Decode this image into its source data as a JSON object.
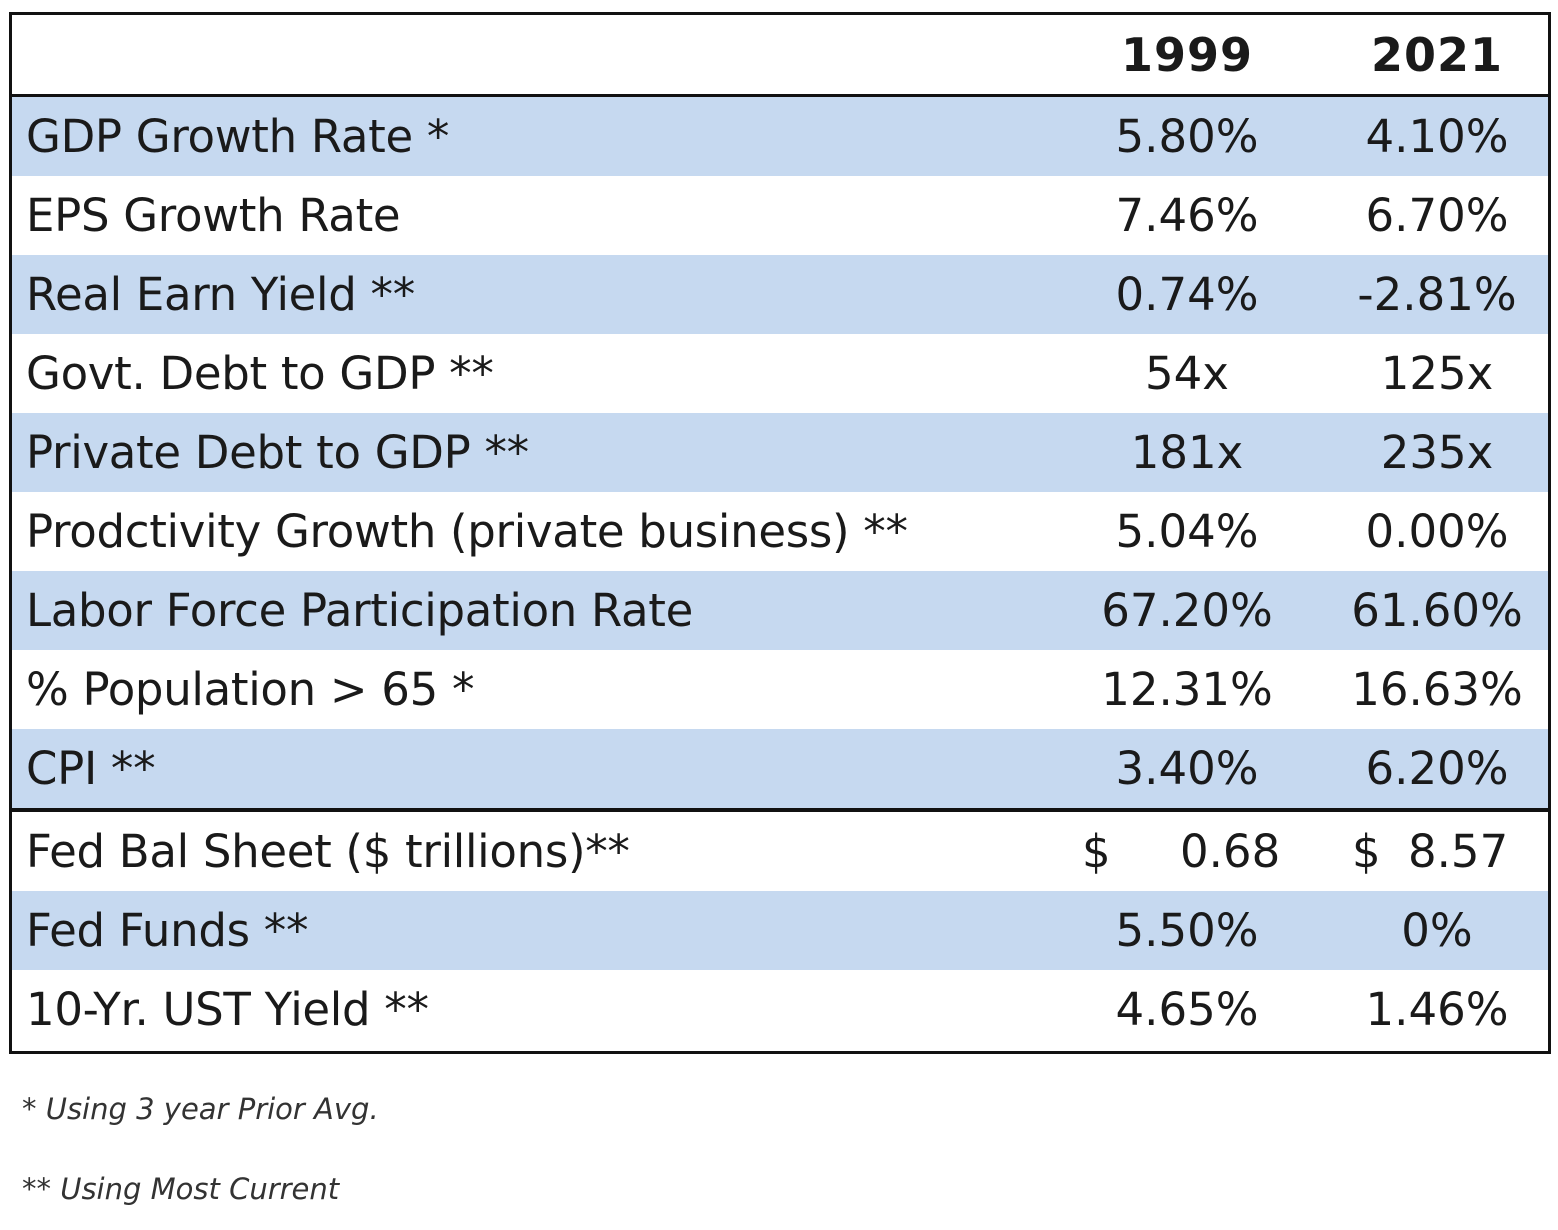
{
  "table": {
    "headers": [
      "",
      "1999",
      "2021"
    ],
    "rows": [
      {
        "label": "GDP Growth Rate *",
        "v1999": "5.80%",
        "v2021": "4.10%",
        "shaded": true
      },
      {
        "label": "EPS Growth Rate",
        "v1999": "7.46%",
        "v2021": "6.70%",
        "shaded": false
      },
      {
        "label": "Real Earn Yield **",
        "v1999": "0.74%",
        "v2021": "-2.81%",
        "shaded": true
      },
      {
        "label": "Govt. Debt to GDP **",
        "v1999": "54x",
        "v2021": "125x",
        "shaded": false
      },
      {
        "label": "Private Debt to GDP **",
        "v1999": "181x",
        "v2021": "235x",
        "shaded": true
      },
      {
        "label": "Prodctivity Growth (private business) **",
        "v1999": "5.04%",
        "v2021": "0.00%",
        "shaded": false
      },
      {
        "label": "Labor Force Participation Rate",
        "v1999": "67.20%",
        "v2021": "61.60%",
        "shaded": true
      },
      {
        "label": "% Population > 65 *",
        "v1999": "12.31%",
        "v2021": "16.63%",
        "shaded": false
      },
      {
        "label": "CPI **",
        "v1999": "3.40%",
        "v2021": "6.20%",
        "shaded": true
      },
      {
        "label": "Fed Bal Sheet ($ trillions)**",
        "v1999": "0.68",
        "v2021": "8.57",
        "currency": "$",
        "shaded": false
      },
      {
        "label": "Fed Funds **",
        "v1999": "5.50%",
        "v2021": "0%",
        "shaded": true
      },
      {
        "label": "10-Yr. UST Yield **",
        "v1999": "4.65%",
        "v2021": "1.46%",
        "shaded": false
      }
    ]
  },
  "footnotes": {
    "single_star": "* Using 3 year Prior Avg.",
    "double_star": "** Using Most Current"
  },
  "colors": {
    "shaded_row": "#c6d9f0",
    "border": "#111111"
  }
}
